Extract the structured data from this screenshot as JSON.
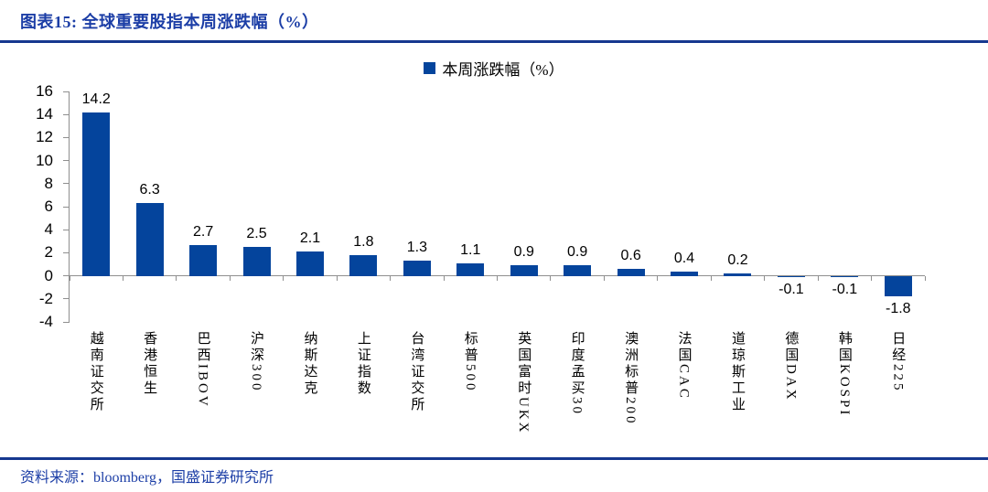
{
  "figure": {
    "title": "图表15: 全球重要股指本周涨跌幅（%）",
    "source": "资料来源：bloomberg，国盛证券研究所"
  },
  "chart_data": {
    "type": "bar",
    "title": "全球重要股指本周涨跌幅（%）",
    "legend": "本周涨跌幅（%）",
    "legend_position": "top-center",
    "categories": [
      "越南证交所",
      "香港恒生",
      "巴西IBOV",
      "沪深300",
      "纳斯达克",
      "上证指数",
      "台湾证交所",
      "标普500",
      "英国富时UKX",
      "印度孟买30",
      "澳洲标普200",
      "法国CAC",
      "道琼斯工业",
      "德国DAX",
      "韩国KOSPI",
      "日经225"
    ],
    "values": [
      14.2,
      6.3,
      2.7,
      2.5,
      2.1,
      1.8,
      1.3,
      1.1,
      0.9,
      0.9,
      0.6,
      0.4,
      0.2,
      -0.1,
      -0.1,
      -1.8
    ],
    "ylim": [
      -4,
      16
    ],
    "ytick_step": 2,
    "grid": false,
    "bar_color": "#04449c",
    "axis_color": "#8f8f8f",
    "accent_blue": "#1c3ea6"
  }
}
